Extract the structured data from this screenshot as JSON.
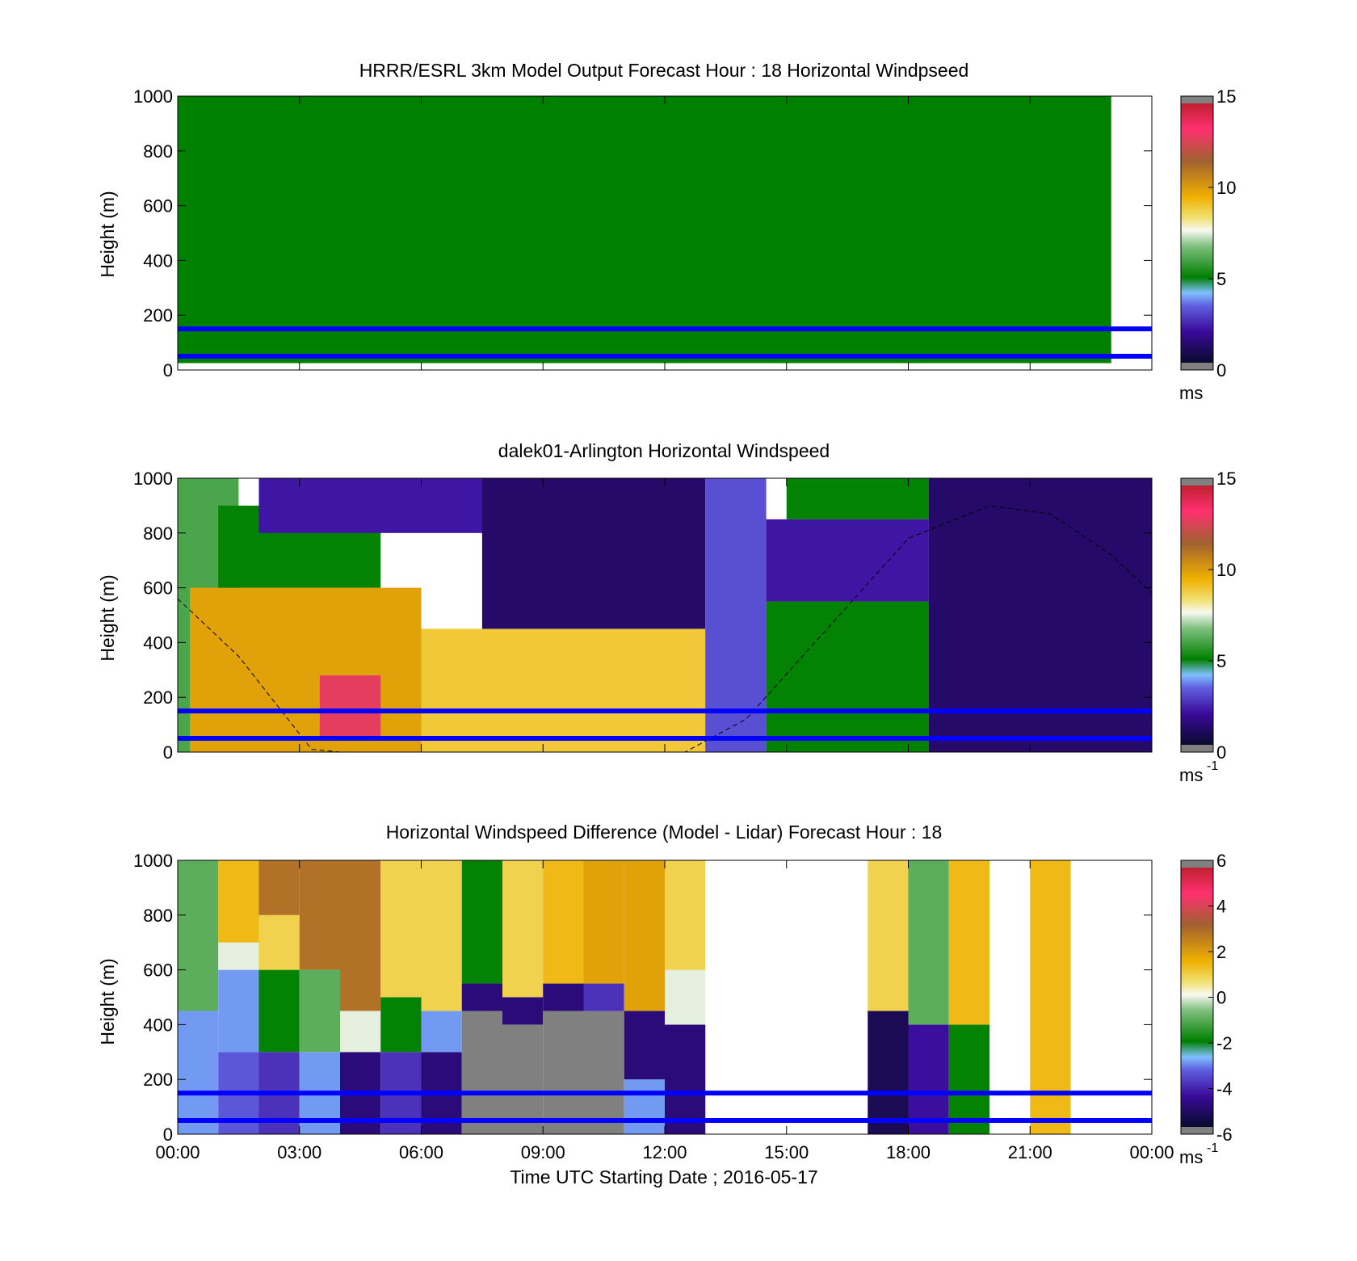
{
  "chart_data": [
    {
      "type": "heatmap",
      "title": "HRRR/ESRL 3km Model Output   Forecast Hour : 18 Horizontal Windpseed",
      "ylabel": "Height (m)",
      "xlabel": "",
      "xlim": [
        0,
        24
      ],
      "ylim": [
        0,
        1000
      ],
      "y_ticks": [
        0,
        200,
        400,
        600,
        800,
        1000
      ],
      "y_tick_labels": [
        "0",
        "200",
        "400",
        "600",
        "800",
        "1000"
      ],
      "x_ticks": [
        0,
        3,
        6,
        9,
        12,
        15,
        18,
        21,
        24
      ],
      "x_tick_labels": [],
      "grid": false,
      "colorbar": {
        "range": [
          0,
          15
        ],
        "ticks": [
          0,
          5,
          10,
          15
        ],
        "tick_labels": [
          "0",
          "5",
          "10",
          "15"
        ],
        "unit": "ms",
        "unit_exp": ""
      },
      "field": {
        "data_extent_hours": [
          0,
          23
        ],
        "data_height_range": [
          25,
          1000
        ],
        "value": 5,
        "color": "#008000",
        "note": ""
      },
      "reference_lines": [
        {
          "y": 50,
          "color": "#0000ff"
        },
        {
          "y": 150,
          "color": "#0000ff"
        }
      ]
    },
    {
      "type": "heatmap",
      "title": "dalek01-Arlington  Horizontal Windspeed",
      "ylabel": "Height (m)",
      "xlabel": "",
      "xlim": [
        0,
        24
      ],
      "ylim": [
        0,
        1000
      ],
      "y_ticks": [
        0,
        200,
        400,
        600,
        800,
        1000
      ],
      "y_tick_labels": [
        "0",
        "200",
        "400",
        "600",
        "800",
        "1000"
      ],
      "x_ticks": [
        0,
        3,
        6,
        9,
        12,
        15,
        18,
        21,
        24
      ],
      "x_tick_labels": [],
      "grid": false,
      "colorbar": {
        "range": [
          0,
          15
        ],
        "ticks": [
          0,
          5,
          10,
          15
        ],
        "tick_labels": [
          "0",
          "5",
          "10",
          "15"
        ],
        "unit": "ms",
        "unit_exp": "-1"
      },
      "regions_estimated": [
        {
          "t0": 0.0,
          "t1": 1.5,
          "h0": 0,
          "h1": 1000,
          "value": 6
        },
        {
          "t0": 0.3,
          "t1": 6.0,
          "h0": 0,
          "h1": 600,
          "value": 10
        },
        {
          "t0": 1.0,
          "t1": 5.0,
          "h0": 600,
          "h1": 900,
          "value": 5
        },
        {
          "t0": 2.0,
          "t1": 8.0,
          "h0": 800,
          "h1": 1000,
          "value": 2
        },
        {
          "t0": 6.0,
          "t1": 13.5,
          "h0": 0,
          "h1": 450,
          "value": 9
        },
        {
          "t0": 3.5,
          "t1": 5.0,
          "h0": 50,
          "h1": 280,
          "value": 13
        },
        {
          "t0": 7.5,
          "t1": 13.0,
          "h0": 450,
          "h1": 1000,
          "value": 1
        },
        {
          "t0": 13.0,
          "t1": 14.5,
          "h0": 0,
          "h1": 1000,
          "value": 3
        },
        {
          "t0": 14.5,
          "t1": 18.5,
          "h0": 0,
          "h1": 550,
          "value": 5
        },
        {
          "t0": 14.5,
          "t1": 18.5,
          "h0": 550,
          "h1": 850,
          "value": 2
        },
        {
          "t0": 15.0,
          "t1": 18.5,
          "h0": 850,
          "h1": 1000,
          "value": 5
        },
        {
          "t0": 18.5,
          "t1": 24.0,
          "h0": 0,
          "h1": 1000,
          "value": 1
        }
      ],
      "reference_lines": [
        {
          "y": 50,
          "color": "#0000ff"
        },
        {
          "y": 150,
          "color": "#0000ff"
        }
      ],
      "boundary_layer_curve": {
        "style": "dashed",
        "t": [
          0.0,
          1.5,
          3.3,
          4.0,
          12.5,
          14.0,
          16.0,
          18.0,
          20.0,
          21.5,
          23.0,
          24.0
        ],
        "h": [
          560,
          350,
          10,
          0,
          0,
          120,
          450,
          780,
          900,
          870,
          720,
          580
        ]
      }
    },
    {
      "type": "heatmap",
      "title": "Horizontal Windspeed Difference (Model - Lidar) Forecast Hour : 18",
      "ylabel": "Height (m)",
      "xlabel": "Time UTC  Starting Date ; 2016-05-17",
      "xlim": [
        0,
        24
      ],
      "ylim": [
        0,
        1000
      ],
      "y_ticks": [
        0,
        200,
        400,
        600,
        800,
        1000
      ],
      "y_tick_labels": [
        "0",
        "200",
        "400",
        "600",
        "800",
        "1000"
      ],
      "x_ticks": [
        0,
        3,
        6,
        9,
        12,
        15,
        18,
        21,
        24
      ],
      "x_tick_labels": [
        "00:00",
        "03:00",
        "06:00",
        "09:00",
        "12:00",
        "15:00",
        "18:00",
        "21:00",
        "00:00"
      ],
      "grid": false,
      "colorbar": {
        "range": [
          -6,
          6
        ],
        "ticks": [
          -6,
          -4,
          -2,
          0,
          2,
          4,
          6
        ],
        "tick_labels": [
          "-6",
          "-4",
          "-2",
          "0",
          "2",
          "4",
          "6"
        ],
        "unit": "ms",
        "unit_exp": "-1"
      },
      "hourly_columns_estimated": [
        {
          "hour": 0,
          "segments": [
            [
              0,
              450,
              -3
            ],
            [
              450,
              1000,
              -1
            ]
          ]
        },
        {
          "hour": 1,
          "segments": [
            [
              0,
              300,
              -3.5
            ],
            [
              300,
              600,
              -3
            ],
            [
              600,
              700,
              0
            ],
            [
              700,
              1000,
              1.5
            ]
          ]
        },
        {
          "hour": 2,
          "segments": [
            [
              0,
              300,
              -4
            ],
            [
              300,
              600,
              -2
            ],
            [
              600,
              800,
              1
            ],
            [
              800,
              1000,
              3
            ]
          ]
        },
        {
          "hour": 3,
          "segments": [
            [
              0,
              300,
              -3
            ],
            [
              300,
              600,
              -1
            ],
            [
              600,
              1000,
              3
            ]
          ]
        },
        {
          "hour": 4,
          "segments": [
            [
              0,
              300,
              -5
            ],
            [
              300,
              450,
              0
            ],
            [
              450,
              1000,
              3
            ]
          ]
        },
        {
          "hour": 5,
          "segments": [
            [
              0,
              300,
              -4
            ],
            [
              300,
              500,
              -2
            ],
            [
              500,
              1000,
              1
            ]
          ]
        },
        {
          "hour": 6,
          "segments": [
            [
              0,
              300,
              -5
            ],
            [
              300,
              450,
              -3
            ],
            [
              450,
              1000,
              1
            ]
          ]
        },
        {
          "hour": 7,
          "segments": [
            [
              0,
              450,
              "nan"
            ],
            [
              450,
              550,
              -5
            ],
            [
              550,
              1000,
              -2
            ]
          ]
        },
        {
          "hour": 8,
          "segments": [
            [
              0,
              400,
              "nan"
            ],
            [
              400,
              500,
              -5
            ],
            [
              500,
              1000,
              1
            ]
          ]
        },
        {
          "hour": 9,
          "segments": [
            [
              0,
              450,
              "nan"
            ],
            [
              450,
              550,
              -5
            ],
            [
              550,
              1000,
              1.5
            ]
          ]
        },
        {
          "hour": 10,
          "segments": [
            [
              0,
              450,
              "nan"
            ],
            [
              450,
              550,
              -4
            ],
            [
              550,
              1000,
              2
            ]
          ]
        },
        {
          "hour": 11,
          "segments": [
            [
              0,
              200,
              -3
            ],
            [
              200,
              450,
              -5
            ],
            [
              450,
              1000,
              2
            ]
          ]
        },
        {
          "hour": 12,
          "segments": [
            [
              0,
              400,
              -5
            ],
            [
              400,
              600,
              0
            ],
            [
              600,
              1000,
              1
            ]
          ]
        },
        {
          "hour": 17,
          "segments": [
            [
              0,
              450,
              -5.5
            ],
            [
              450,
              1000,
              1
            ]
          ]
        },
        {
          "hour": 18,
          "segments": [
            [
              0,
              400,
              -4.5
            ],
            [
              400,
              1000,
              -1
            ]
          ]
        },
        {
          "hour": 19,
          "segments": [
            [
              0,
              400,
              -2
            ],
            [
              400,
              1000,
              1.5
            ]
          ]
        },
        {
          "hour": 21,
          "segments": [
            [
              0,
              1000,
              1.5
            ]
          ]
        }
      ],
      "reference_lines": [
        {
          "y": 50,
          "color": "#0000ff"
        },
        {
          "y": 150,
          "color": "#0000ff"
        }
      ]
    }
  ],
  "colormap": {
    "stops": [
      {
        "f": 0.0,
        "color": "#0a0a2e"
      },
      {
        "f": 0.12,
        "color": "#3a0a9a"
      },
      {
        "f": 0.22,
        "color": "#6060e0"
      },
      {
        "f": 0.27,
        "color": "#80c0ff"
      },
      {
        "f": 0.33,
        "color": "#008000"
      },
      {
        "f": 0.45,
        "color": "#80c080"
      },
      {
        "f": 0.51,
        "color": "#f8f8f0"
      },
      {
        "f": 0.56,
        "color": "#f0e070"
      },
      {
        "f": 0.64,
        "color": "#f0b000"
      },
      {
        "f": 0.78,
        "color": "#a06030"
      },
      {
        "f": 0.9,
        "color": "#ff3070"
      },
      {
        "f": 1.0,
        "color": "#c02030"
      }
    ],
    "nan_color": "#808080"
  }
}
